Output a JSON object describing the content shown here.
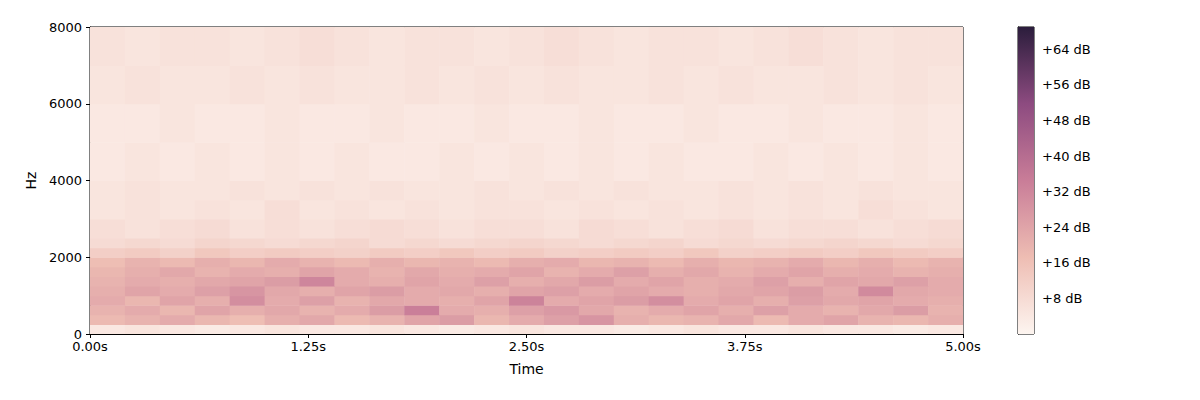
{
  "chart_data": {
    "type": "heatmap",
    "xlabel": "Time",
    "ylabel": "Hz",
    "grid": false,
    "xlim": [
      0,
      5
    ],
    "xticks": [
      {
        "value": 0,
        "label": "0.00s"
      },
      {
        "value": 1.25,
        "label": "1.25s"
      },
      {
        "value": 2.5,
        "label": "2.50s"
      },
      {
        "value": 3.75,
        "label": "3.75s"
      },
      {
        "value": 5,
        "label": "5.00s"
      }
    ],
    "ylim": [
      0,
      8000
    ],
    "yticks": [
      0,
      2000,
      4000,
      6000,
      8000
    ],
    "time_edges": [
      0,
      0.2,
      0.4,
      0.6,
      0.8,
      1.0,
      1.2,
      1.4,
      1.6,
      1.8,
      2.0,
      2.2,
      2.4,
      2.6,
      2.8,
      3.0,
      3.2,
      3.4,
      3.6,
      3.8,
      4.0,
      4.2,
      4.4,
      4.6,
      4.8,
      5.0
    ],
    "freq_edges": [
      0,
      250,
      500,
      750,
      1000,
      1250,
      1500,
      1750,
      2000,
      2250,
      2500,
      3000,
      3500,
      4000,
      5000,
      6000,
      7000,
      8000
    ],
    "cells": [
      [
        4,
        5,
        4,
        3,
        4,
        5,
        4,
        4,
        5,
        4,
        3,
        4,
        5,
        4,
        4,
        3,
        4,
        5,
        4,
        4,
        5,
        4,
        4,
        3,
        4
      ],
      [
        18,
        20,
        22,
        19,
        17,
        21,
        23,
        18,
        20,
        24,
        26,
        19,
        22,
        25,
        28,
        21,
        19,
        20,
        23,
        18,
        22,
        24,
        20,
        19,
        21
      ],
      [
        20,
        22,
        19,
        24,
        21,
        23,
        20,
        22,
        26,
        34,
        22,
        21,
        25,
        27,
        23,
        20,
        22,
        24,
        21,
        25,
        22,
        20,
        23,
        26,
        20
      ],
      [
        22,
        19,
        24,
        21,
        30,
        22,
        25,
        20,
        23,
        22,
        21,
        24,
        33,
        22,
        24,
        26,
        30,
        22,
        24,
        21,
        25,
        23,
        24,
        22,
        21
      ],
      [
        21,
        24,
        22,
        25,
        28,
        23,
        21,
        24,
        26,
        22,
        23,
        21,
        24,
        25,
        22,
        24,
        22,
        21,
        23,
        24,
        26,
        22,
        31,
        23,
        22
      ],
      [
        20,
        22,
        21,
        23,
        24,
        26,
        32,
        22,
        21,
        24,
        22,
        25,
        21,
        23,
        26,
        22,
        24,
        21,
        22,
        25,
        21,
        24,
        23,
        25,
        22
      ],
      [
        19,
        21,
        23,
        20,
        22,
        21,
        24,
        22,
        20,
        23,
        21,
        22,
        24,
        20,
        22,
        25,
        21,
        23,
        20,
        22,
        24,
        21,
        22,
        20,
        21
      ],
      [
        17,
        20,
        18,
        21,
        19,
        22,
        20,
        18,
        21,
        19,
        20,
        18,
        21,
        22,
        19,
        20,
        18,
        21,
        19,
        20,
        22,
        19,
        21,
        18,
        20
      ],
      [
        12,
        13,
        11,
        14,
        12,
        13,
        12,
        11,
        13,
        12,
        14,
        12,
        13,
        11,
        12,
        13,
        12,
        14,
        11,
        12,
        13,
        12,
        14,
        13,
        12
      ],
      [
        8,
        9,
        8,
        10,
        9,
        8,
        9,
        10,
        8,
        9,
        8,
        9,
        10,
        9,
        8,
        9,
        10,
        8,
        9,
        8,
        9,
        10,
        9,
        8,
        9
      ],
      [
        7,
        6,
        7,
        8,
        6,
        7,
        6,
        7,
        8,
        7,
        6,
        7,
        7,
        6,
        8,
        7,
        6,
        7,
        8,
        6,
        7,
        7,
        6,
        7,
        8
      ],
      [
        5,
        6,
        5,
        6,
        5,
        7,
        5,
        6,
        5,
        6,
        5,
        6,
        6,
        5,
        6,
        5,
        6,
        5,
        6,
        5,
        6,
        5,
        7,
        6,
        5
      ],
      [
        5,
        6,
        5,
        5,
        6,
        5,
        6,
        5,
        6,
        5,
        5,
        6,
        5,
        6,
        5,
        6,
        5,
        5,
        6,
        5,
        6,
        5,
        6,
        5,
        5
      ],
      [
        4,
        5,
        4,
        5,
        4,
        5,
        4,
        5,
        4,
        4,
        5,
        4,
        5,
        4,
        5,
        4,
        5,
        4,
        4,
        5,
        4,
        5,
        4,
        5,
        4
      ],
      [
        4,
        4,
        5,
        4,
        4,
        5,
        4,
        4,
        5,
        4,
        4,
        5,
        4,
        4,
        5,
        4,
        4,
        5,
        4,
        4,
        5,
        4,
        4,
        5,
        4
      ],
      [
        5,
        6,
        5,
        5,
        6,
        5,
        6,
        5,
        5,
        6,
        5,
        6,
        5,
        6,
        5,
        5,
        6,
        5,
        6,
        5,
        5,
        6,
        5,
        6,
        5
      ],
      [
        6,
        5,
        6,
        6,
        5,
        6,
        7,
        6,
        5,
        6,
        6,
        5,
        6,
        7,
        6,
        5,
        6,
        6,
        5,
        6,
        7,
        6,
        5,
        6,
        6
      ]
    ],
    "colorbar_range": [
      0,
      69
    ],
    "colorbar_ticks": [
      {
        "value": 8,
        "label": "+8 dB"
      },
      {
        "value": 16,
        "label": "+16 dB"
      },
      {
        "value": 24,
        "label": "+24 dB"
      },
      {
        "value": 32,
        "label": "+32 dB"
      },
      {
        "value": 40,
        "label": "+40 dB"
      },
      {
        "value": 48,
        "label": "+48 dB"
      },
      {
        "value": 56,
        "label": "+56 dB"
      },
      {
        "value": 64,
        "label": "+64 dB"
      }
    ]
  }
}
